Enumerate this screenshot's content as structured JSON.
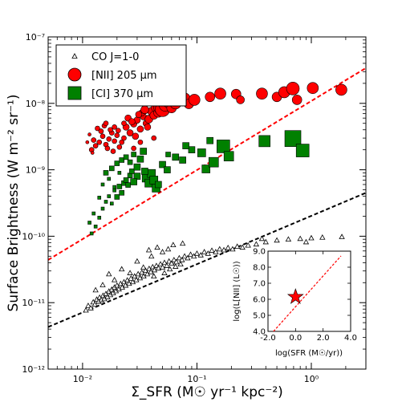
{
  "chart_data": {
    "type": "scatter",
    "xlabel": "Σ_SFR (M☉ yr⁻¹ kpc⁻²)",
    "ylabel": "Surface Brightness (W m⁻² sr⁻¹)",
    "xscale": "log",
    "yscale": "log",
    "xlim": [
      0.005,
      3.0
    ],
    "ylim": [
      1e-12,
      1e-07
    ],
    "x_tick_labels": [
      "10⁻²",
      "10⁻¹",
      "10⁰"
    ],
    "y_tick_labels": [
      "10⁻¹²",
      "10⁻¹¹",
      "10⁻¹⁰",
      "10⁻⁹",
      "10⁻⁸",
      "10⁻⁷"
    ],
    "grid": false,
    "legend": {
      "placement": "top-left",
      "entries": [
        {
          "label": "CO J=1-0",
          "marker": "triangle",
          "color": "#ffffff"
        },
        {
          "label": "[NII] 205 μm",
          "marker": "circle",
          "color": "#ff0000"
        },
        {
          "label": "[CI] 370 μm",
          "marker": "square",
          "color": "#008000"
        }
      ]
    },
    "series": [
      {
        "name": "CO J=1-0",
        "marker": "triangle",
        "color": "#ffffff",
        "points": [
          [
            0.0107,
            7.7e-12
          ],
          [
            0.0112,
            9e-12
          ],
          [
            0.0118,
            8.3e-12
          ],
          [
            0.0124,
            1.02e-11
          ],
          [
            0.0128,
            9.4e-12
          ],
          [
            0.0133,
            1.12e-11
          ],
          [
            0.0138,
            1.04e-11
          ],
          [
            0.0141,
            1.2e-11
          ],
          [
            0.0146,
            1.1e-11
          ],
          [
            0.0151,
            1.28e-11
          ],
          [
            0.0155,
            1.14e-11
          ],
          [
            0.016,
            1.36e-11
          ],
          [
            0.0165,
            1.22e-11
          ],
          [
            0.017,
            1.48e-11
          ],
          [
            0.0175,
            1.31e-11
          ],
          [
            0.018,
            1.58e-11
          ],
          [
            0.0185,
            1.4e-11
          ],
          [
            0.019,
            1.7e-11
          ],
          [
            0.0196,
            1.5e-11
          ],
          [
            0.02,
            1.82e-11
          ],
          [
            0.0208,
            1.6e-11
          ],
          [
            0.0215,
            1.93e-11
          ],
          [
            0.0222,
            1.7e-11
          ],
          [
            0.023,
            2.05e-11
          ],
          [
            0.0238,
            1.82e-11
          ],
          [
            0.0246,
            2.18e-11
          ],
          [
            0.0255,
            1.94e-11
          ],
          [
            0.0265,
            2.32e-11
          ],
          [
            0.0275,
            2.05e-11
          ],
          [
            0.0285,
            2.5e-11
          ],
          [
            0.0295,
            2.2e-11
          ],
          [
            0.0306,
            2.7e-11
          ],
          [
            0.0318,
            2.35e-11
          ],
          [
            0.033,
            2.85e-11
          ],
          [
            0.0342,
            2.5e-11
          ],
          [
            0.0355,
            3.05e-11
          ],
          [
            0.0368,
            2.7e-11
          ],
          [
            0.0382,
            3.25e-11
          ],
          [
            0.0396,
            2.9e-11
          ],
          [
            0.041,
            3.45e-11
          ],
          [
            0.0425,
            3.1e-11
          ],
          [
            0.0442,
            3.6e-11
          ],
          [
            0.046,
            3.3e-11
          ],
          [
            0.048,
            3.8e-11
          ],
          [
            0.05,
            3.4e-11
          ],
          [
            0.052,
            4e-11
          ],
          [
            0.0545,
            3.6e-11
          ],
          [
            0.057,
            4.2e-11
          ],
          [
            0.06,
            3.9e-11
          ],
          [
            0.063,
            4.4e-11
          ],
          [
            0.066,
            4.1e-11
          ],
          [
            0.07,
            4.7e-11
          ],
          [
            0.074,
            4.4e-11
          ],
          [
            0.078,
            5e-11
          ],
          [
            0.083,
            4.7e-11
          ],
          [
            0.088,
            5.3e-11
          ],
          [
            0.094,
            5e-11
          ],
          [
            0.1,
            5.5e-11
          ],
          [
            0.108,
            5.2e-11
          ],
          [
            0.116,
            5.8e-11
          ],
          [
            0.125,
            5.5e-11
          ],
          [
            0.135,
            6.1e-11
          ],
          [
            0.146,
            5.8e-11
          ],
          [
            0.158,
            6.4e-11
          ],
          [
            0.172,
            6.2e-11
          ],
          [
            0.187,
            6.7e-11
          ],
          [
            0.205,
            6.4e-11
          ],
          [
            0.225,
            7e-11
          ],
          [
            0.25,
            6.8e-11
          ],
          [
            0.28,
            7.3e-11
          ],
          [
            0.017,
            2.7e-11
          ],
          [
            0.022,
            3.2e-11
          ],
          [
            0.03,
            4.2e-11
          ],
          [
            0.04,
            5e-11
          ],
          [
            0.05,
            5.8e-11
          ],
          [
            0.056,
            6.4e-11
          ],
          [
            0.062,
            7.4e-11
          ],
          [
            0.045,
            6.8e-11
          ],
          [
            0.038,
            6.2e-11
          ],
          [
            0.075,
            7.8e-11
          ],
          [
            0.013,
            1.55e-11
          ],
          [
            0.015,
            1.85e-11
          ],
          [
            0.019,
            2.2e-11
          ],
          [
            0.026,
            2.8e-11
          ],
          [
            0.034,
            3.4e-11
          ],
          [
            0.042,
            2.5e-11
          ],
          [
            0.052,
            2.8e-11
          ],
          [
            0.058,
            3.2e-11
          ],
          [
            0.065,
            3.5e-11
          ],
          [
            0.072,
            3.8e-11
          ],
          [
            0.33,
            7.6e-11
          ],
          [
            0.4,
            8.2e-11
          ],
          [
            0.5,
            8.7e-11
          ],
          [
            0.63,
            9e-11
          ],
          [
            0.8,
            9.2e-11
          ],
          [
            1.0,
            9.4e-11
          ],
          [
            1.25,
            9.6e-11
          ],
          [
            1.85,
            9.8e-11
          ],
          [
            0.37,
            9.2e-11
          ],
          [
            0.9,
            8.2e-11
          ]
        ]
      },
      {
        "name": "[NII] 205 μm",
        "marker": "circle",
        "color": "#ff0000",
        "points": [
          [
            0.012,
            2e-09,
            3
          ],
          [
            0.013,
            2.3e-09,
            3
          ],
          [
            0.014,
            2.6e-09,
            3
          ],
          [
            0.0125,
            2.8e-09,
            3
          ],
          [
            0.015,
            3.2e-09,
            3
          ],
          [
            0.016,
            2.4e-09,
            3
          ],
          [
            0.017,
            2.9e-09,
            3
          ],
          [
            0.018,
            3.6e-09,
            3
          ],
          [
            0.019,
            2.7e-09,
            3
          ],
          [
            0.02,
            3.3e-09,
            3
          ],
          [
            0.0135,
            4.2e-09,
            3
          ],
          [
            0.0155,
            4.6e-09,
            3
          ],
          [
            0.0175,
            4e-09,
            3
          ],
          [
            0.021,
            2.2e-09,
            3
          ],
          [
            0.022,
            2.6e-09,
            3
          ],
          [
            0.0145,
            3.8e-09,
            3
          ],
          [
            0.0165,
            2.1e-09,
            3
          ],
          [
            0.0185,
            1.9e-09,
            3
          ],
          [
            0.0205,
            3.9e-09,
            3
          ],
          [
            0.023,
            3e-09,
            3
          ],
          [
            0.024,
            4.4e-09,
            4
          ],
          [
            0.026,
            3.6e-09,
            4
          ],
          [
            0.028,
            4.9e-09,
            4
          ],
          [
            0.03,
            5.6e-09,
            4
          ],
          [
            0.032,
            4.1e-09,
            4
          ],
          [
            0.034,
            6.3e-09,
            4
          ],
          [
            0.036,
            5e-09,
            4
          ],
          [
            0.025,
            6e-09,
            4
          ],
          [
            0.029,
            3.2e-09,
            4
          ],
          [
            0.033,
            7.2e-09,
            4
          ],
          [
            0.038,
            5.8e-09,
            5
          ],
          [
            0.04,
            7.6e-09,
            5
          ],
          [
            0.042,
            6.6e-09,
            5
          ],
          [
            0.044,
            8.6e-09,
            6
          ],
          [
            0.046,
            7.3e-09,
            6
          ],
          [
            0.037,
            4.4e-09,
            4
          ],
          [
            0.027,
            5.3e-09,
            4
          ],
          [
            0.031,
            6.8e-09,
            4
          ],
          [
            0.035,
            8e-09,
            5
          ],
          [
            0.023,
            5e-09,
            3
          ],
          [
            0.049,
            8.9e-09,
            10
          ],
          [
            0.05,
            8.1e-09,
            9
          ],
          [
            0.053,
            9.5e-09,
            8
          ],
          [
            0.056,
            1.05e-08,
            7
          ],
          [
            0.06,
            8.5e-09,
            6
          ],
          [
            0.065,
            1e-08,
            7
          ],
          [
            0.078,
            1.18e-08,
            7
          ],
          [
            0.085,
            9.8e-09,
            6
          ],
          [
            0.095,
            1.13e-08,
            7
          ],
          [
            0.13,
            1.25e-08,
            6
          ],
          [
            0.16,
            1.4e-08,
            7
          ],
          [
            0.22,
            1.38e-08,
            6
          ],
          [
            0.24,
            1.13e-08,
            5
          ],
          [
            0.37,
            1.4e-08,
            7
          ],
          [
            0.5,
            1.25e-08,
            6
          ],
          [
            0.58,
            1.47e-08,
            7
          ],
          [
            0.69,
            1.67e-08,
            8
          ],
          [
            0.75,
            1.13e-08,
            6
          ],
          [
            1.03,
            1.7e-08,
            7
          ],
          [
            1.83,
            1.6e-08,
            7
          ],
          [
            0.032,
            2.6e-09,
            3
          ],
          [
            0.042,
            3e-09,
            3
          ],
          [
            0.019,
            4.4e-09,
            3
          ],
          [
            0.016,
            5e-09,
            3
          ],
          [
            0.028,
            2.1e-09,
            3
          ],
          [
            0.011,
            2.6e-09,
            2
          ],
          [
            0.0115,
            3.4e-09,
            2
          ],
          [
            0.0122,
            1.8e-09,
            2
          ]
        ]
      },
      {
        "name": "[CI] 370 μm",
        "marker": "square",
        "color": "#008000",
        "points": [
          [
            0.013,
            1.4e-10,
            2
          ],
          [
            0.014,
            1.9e-10,
            2
          ],
          [
            0.015,
            2.6e-10,
            2
          ],
          [
            0.016,
            3.3e-10,
            2
          ],
          [
            0.017,
            4e-10,
            2
          ],
          [
            0.018,
            3.1e-10,
            2
          ],
          [
            0.019,
            4.9e-10,
            2
          ],
          [
            0.02,
            3.9e-10,
            3
          ],
          [
            0.021,
            5.6e-10,
            3
          ],
          [
            0.022,
            4.5e-10,
            3
          ],
          [
            0.023,
            6.3e-10,
            3
          ],
          [
            0.024,
            7e-10,
            3
          ],
          [
            0.025,
            5.9e-10,
            3
          ],
          [
            0.026,
            8.2e-10,
            3
          ],
          [
            0.027,
            9.5e-10,
            3
          ],
          [
            0.016,
            9e-10,
            3
          ],
          [
            0.018,
            1.05e-09,
            3
          ],
          [
            0.02,
            1.25e-09,
            3
          ],
          [
            0.022,
            1.4e-09,
            3
          ],
          [
            0.024,
            1.55e-09,
            3
          ],
          [
            0.026,
            1.3e-09,
            3
          ],
          [
            0.028,
            1.7e-09,
            3
          ],
          [
            0.03,
            1.1e-09,
            4
          ],
          [
            0.032,
            1.45e-09,
            4
          ],
          [
            0.034,
            1.9e-09,
            4
          ],
          [
            0.036,
            7.5e-10,
            5
          ],
          [
            0.038,
            6.3e-10,
            5
          ],
          [
            0.04,
            8.8e-10,
            5
          ],
          [
            0.042,
            7e-10,
            5
          ],
          [
            0.044,
            5.3e-10,
            5
          ],
          [
            0.03,
            8e-10,
            4
          ],
          [
            0.028,
            6.6e-10,
            4
          ],
          [
            0.035,
            9.5e-10,
            4
          ],
          [
            0.046,
            6e-10,
            4
          ],
          [
            0.05,
            1.2e-09,
            4
          ],
          [
            0.055,
            1e-09,
            4
          ],
          [
            0.065,
            1.55e-09,
            4
          ],
          [
            0.075,
            1.4e-09,
            4
          ],
          [
            0.09,
            2e-09,
            4
          ],
          [
            0.11,
            1.8e-09,
            5
          ],
          [
            0.12,
            1.03e-09,
            5
          ],
          [
            0.14,
            1.3e-09,
            6
          ],
          [
            0.17,
            2.25e-09,
            8
          ],
          [
            0.19,
            1.6e-09,
            6
          ],
          [
            0.39,
            2.7e-09,
            7
          ],
          [
            0.69,
            2.95e-09,
            10
          ],
          [
            0.84,
            1.95e-09,
            8
          ],
          [
            0.13,
            2.75e-09,
            4
          ],
          [
            0.08,
            2.3e-09,
            4
          ],
          [
            0.056,
            1.7e-09,
            3
          ],
          [
            0.015,
            6e-10,
            2
          ],
          [
            0.017,
            7.3e-10,
            2
          ],
          [
            0.019,
            5.5e-10,
            2
          ],
          [
            0.021,
            9e-10,
            2
          ],
          [
            0.014,
            3.8e-10,
            2
          ],
          [
            0.012,
            1.1e-10,
            2
          ],
          [
            0.0115,
            1.6e-10,
            2
          ],
          [
            0.0125,
            2.2e-10,
            2
          ]
        ]
      }
    ],
    "fit_lines": [
      {
        "name": "[NII] fit",
        "color": "#ff0000",
        "style": "dashed",
        "x": [
          0.005,
          3.0
        ],
        "y": [
          4.4e-11,
          3.4e-08
        ]
      },
      {
        "name": "CO fit",
        "color": "#000000",
        "style": "dashed",
        "x": [
          0.005,
          3.0
        ],
        "y": [
          4.3e-12,
          4.5e-10
        ]
      }
    ],
    "inset": {
      "xlabel": "log(SFR (M☉/yr))",
      "ylabel": "log(L[NII] (L☉))",
      "xlim": [
        -2.0,
        4.0
      ],
      "ylim": [
        4.0,
        9.0
      ],
      "x_tick_labels": [
        "-2.0",
        "0.0",
        "2.0",
        "4.0"
      ],
      "y_tick_labels": [
        "4.0",
        "5.0",
        "6.0",
        "7.0",
        "8.0",
        "9.0"
      ],
      "star": {
        "x": 0.0,
        "y": 6.15,
        "color": "#ff0000"
      },
      "line": {
        "x": [
          -1.6,
          3.3
        ],
        "y": [
          4.0,
          8.7
        ],
        "color": "#ff0000",
        "style": "dashed"
      }
    }
  }
}
